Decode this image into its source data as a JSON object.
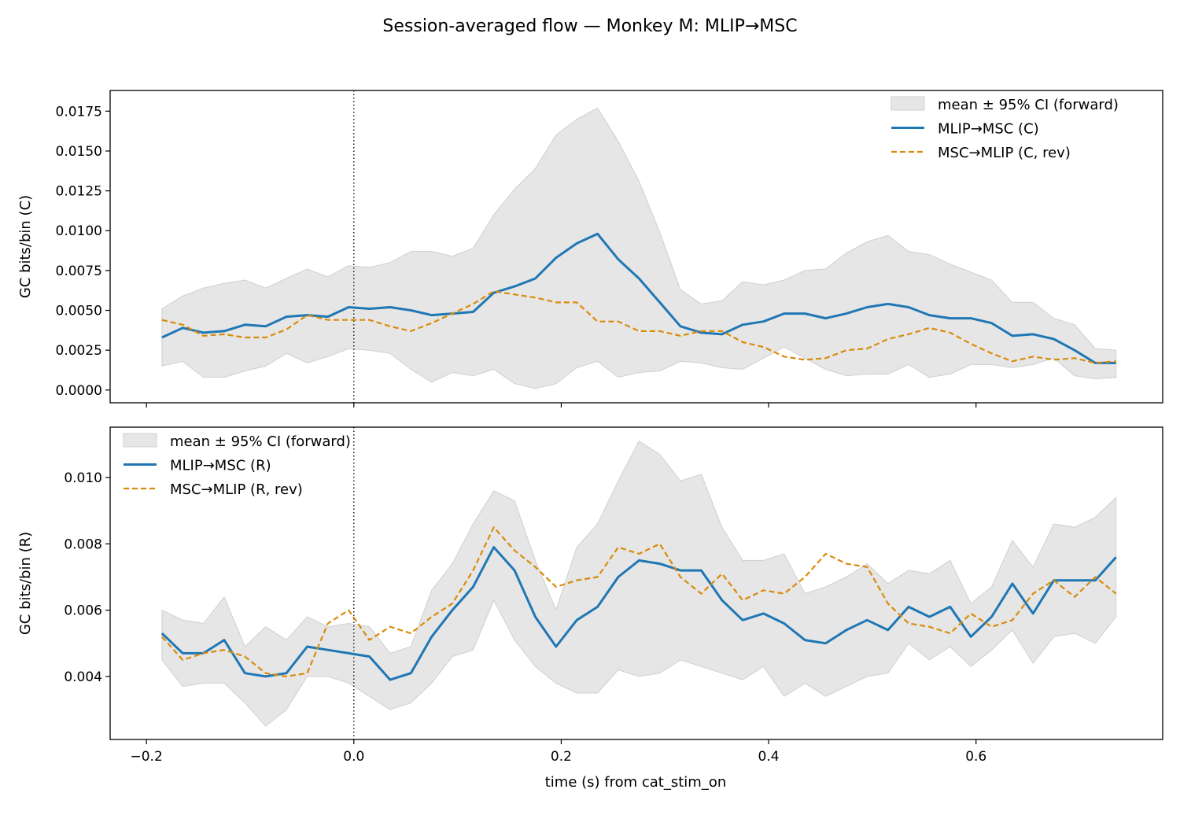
{
  "figure": {
    "title": "Session-averaged flow — Monkey M: MLIP→MSC",
    "xlabel": "time (s) from cat_stim_on",
    "colors": {
      "forward": "#1f77b4",
      "reverse": "#d98b0a",
      "ci_fill": "#e6e6e6",
      "ci_edge": "#cfcfcf"
    }
  },
  "chart_data": [
    {
      "type": "line",
      "title": "",
      "xlabel": "",
      "ylabel": "GC bits/bin (C)",
      "xlim": [
        -0.235,
        0.78
      ],
      "ylim": [
        -0.0008,
        0.0188
      ],
      "xticks": [
        -0.2,
        0.0,
        0.2,
        0.4,
        0.6
      ],
      "xtick_labels": [
        "−0.2",
        "0.0",
        "0.2",
        "0.4",
        "0.6"
      ],
      "xtick_labels_visible": false,
      "yticks": [
        0.0,
        0.0025,
        0.005,
        0.0075,
        0.01,
        0.0125,
        0.015,
        0.0175
      ],
      "ytick_labels": [
        "0.0000",
        "0.0025",
        "0.0050",
        "0.0075",
        "0.0100",
        "0.0125",
        "0.0150",
        "0.0175"
      ],
      "event_line_x": 0.0,
      "legend_position": "upper-right",
      "legend": [
        "mean ± 95% CI (forward)",
        "MLIP→MSC (C)",
        "MSC→MLIP (C, rev)"
      ],
      "x": [
        -0.185,
        -0.165,
        -0.145,
        -0.125,
        -0.105,
        -0.085,
        -0.065,
        -0.045,
        -0.025,
        -0.005,
        0.015,
        0.035,
        0.055,
        0.075,
        0.095,
        0.115,
        0.135,
        0.155,
        0.175,
        0.195,
        0.215,
        0.235,
        0.255,
        0.275,
        0.295,
        0.315,
        0.335,
        0.355,
        0.375,
        0.395,
        0.415,
        0.435,
        0.455,
        0.475,
        0.495,
        0.515,
        0.535,
        0.555,
        0.575,
        0.595,
        0.615,
        0.635,
        0.655,
        0.675,
        0.695,
        0.715,
        0.735
      ],
      "ci_upper": [
        0.0051,
        0.0059,
        0.0064,
        0.0067,
        0.0069,
        0.0064,
        0.007,
        0.0076,
        0.0071,
        0.0078,
        0.0077,
        0.008,
        0.0087,
        0.0087,
        0.0084,
        0.0089,
        0.011,
        0.0126,
        0.0139,
        0.016,
        0.017,
        0.0177,
        0.0156,
        0.0131,
        0.0099,
        0.0063,
        0.0054,
        0.0056,
        0.0068,
        0.0066,
        0.0069,
        0.0075,
        0.0076,
        0.0086,
        0.0093,
        0.0097,
        0.0087,
        0.0085,
        0.0079,
        0.0074,
        0.0069,
        0.0055,
        0.0055,
        0.0045,
        0.0041,
        0.0026,
        0.0025
      ],
      "ci_lower": [
        0.0015,
        0.0018,
        0.0008,
        0.0008,
        0.0012,
        0.0015,
        0.0023,
        0.0017,
        0.0021,
        0.0026,
        0.0025,
        0.0023,
        0.0013,
        0.0005,
        0.0011,
        0.0009,
        0.0013,
        0.0004,
        0.0001,
        0.0004,
        0.0014,
        0.0018,
        0.0008,
        0.0011,
        0.0012,
        0.0018,
        0.0017,
        0.0014,
        0.0013,
        0.002,
        0.0027,
        0.002,
        0.0013,
        0.0009,
        0.001,
        0.001,
        0.0016,
        0.0008,
        0.001,
        0.0016,
        0.0016,
        0.0014,
        0.0016,
        0.002,
        0.0009,
        0.0007,
        0.0008
      ],
      "series": [
        {
          "name": "MLIP→MSC (C)",
          "style": "solid",
          "values": [
            0.0033,
            0.0039,
            0.0036,
            0.0037,
            0.0041,
            0.004,
            0.0046,
            0.0047,
            0.0046,
            0.0052,
            0.0051,
            0.0052,
            0.005,
            0.0047,
            0.0048,
            0.0049,
            0.0061,
            0.0065,
            0.007,
            0.0083,
            0.0092,
            0.0098,
            0.0082,
            0.007,
            0.0055,
            0.004,
            0.0036,
            0.0035,
            0.0041,
            0.0043,
            0.0048,
            0.0048,
            0.0045,
            0.0048,
            0.0052,
            0.0054,
            0.0052,
            0.0047,
            0.0045,
            0.0045,
            0.0042,
            0.0034,
            0.0035,
            0.0032,
            0.0025,
            0.0017,
            0.0017
          ]
        },
        {
          "name": "MSC→MLIP (C, rev)",
          "style": "dashed",
          "values": [
            0.0044,
            0.0041,
            0.0034,
            0.0035,
            0.0033,
            0.0033,
            0.0038,
            0.0047,
            0.0044,
            0.0044,
            0.0044,
            0.004,
            0.0037,
            0.0042,
            0.0048,
            0.0054,
            0.0062,
            0.006,
            0.0058,
            0.0055,
            0.0055,
            0.0043,
            0.0043,
            0.0037,
            0.0037,
            0.0034,
            0.0037,
            0.0037,
            0.003,
            0.0027,
            0.0021,
            0.0019,
            0.002,
            0.0025,
            0.0026,
            0.0032,
            0.0035,
            0.0039,
            0.0036,
            0.0029,
            0.0023,
            0.0018,
            0.0021,
            0.0019,
            0.002,
            0.0017,
            0.0018
          ]
        }
      ]
    },
    {
      "type": "line",
      "title": "",
      "xlabel": "time (s) from cat_stim_on",
      "ylabel": "GC bits/bin (R)",
      "xlim": [
        -0.235,
        0.78
      ],
      "ylim": [
        0.0021,
        0.01152
      ],
      "xticks": [
        -0.2,
        0.0,
        0.2,
        0.4,
        0.6
      ],
      "xtick_labels": [
        "−0.2",
        "0.0",
        "0.2",
        "0.4",
        "0.6"
      ],
      "xtick_labels_visible": true,
      "yticks": [
        0.004,
        0.006,
        0.008,
        0.01
      ],
      "ytick_labels": [
        "0.004",
        "0.006",
        "0.008",
        "0.010"
      ],
      "event_line_x": 0.0,
      "legend_position": "upper-left",
      "legend": [
        "mean ± 95% CI (forward)",
        "MLIP→MSC (R)",
        "MSC→MLIP (R, rev)"
      ],
      "x": [
        -0.185,
        -0.165,
        -0.145,
        -0.125,
        -0.105,
        -0.085,
        -0.065,
        -0.045,
        -0.025,
        -0.005,
        0.015,
        0.035,
        0.055,
        0.075,
        0.095,
        0.115,
        0.135,
        0.155,
        0.175,
        0.195,
        0.215,
        0.235,
        0.255,
        0.275,
        0.295,
        0.315,
        0.335,
        0.355,
        0.375,
        0.395,
        0.415,
        0.435,
        0.455,
        0.475,
        0.495,
        0.515,
        0.535,
        0.555,
        0.575,
        0.595,
        0.615,
        0.635,
        0.655,
        0.675,
        0.695,
        0.715,
        0.735
      ],
      "ci_upper": [
        0.006,
        0.0057,
        0.0056,
        0.0064,
        0.0049,
        0.0055,
        0.0051,
        0.0058,
        0.0055,
        0.0056,
        0.0055,
        0.0047,
        0.0049,
        0.0066,
        0.0074,
        0.0086,
        0.0096,
        0.0093,
        0.0075,
        0.006,
        0.0079,
        0.0086,
        0.0099,
        0.0111,
        0.0107,
        0.0099,
        0.0101,
        0.0085,
        0.0075,
        0.0075,
        0.0077,
        0.0065,
        0.0067,
        0.007,
        0.0074,
        0.0068,
        0.0072,
        0.0071,
        0.0075,
        0.0062,
        0.0067,
        0.0081,
        0.0073,
        0.0086,
        0.0085,
        0.0088,
        0.0094
      ],
      "ci_lower": [
        0.0045,
        0.0037,
        0.0038,
        0.0038,
        0.0032,
        0.0025,
        0.003,
        0.004,
        0.004,
        0.0038,
        0.0034,
        0.003,
        0.0032,
        0.0038,
        0.0046,
        0.0048,
        0.0063,
        0.0051,
        0.0043,
        0.0038,
        0.0035,
        0.0035,
        0.0042,
        0.004,
        0.0041,
        0.0045,
        0.0043,
        0.0041,
        0.0039,
        0.0043,
        0.0034,
        0.0038,
        0.0034,
        0.0037,
        0.004,
        0.0041,
        0.005,
        0.0045,
        0.0049,
        0.0043,
        0.0048,
        0.0054,
        0.0044,
        0.0052,
        0.0053,
        0.005,
        0.0058
      ],
      "series": [
        {
          "name": "MLIP→MSC (R)",
          "style": "solid",
          "values": [
            0.0053,
            0.0047,
            0.0047,
            0.0051,
            0.0041,
            0.004,
            0.0041,
            0.0049,
            0.0048,
            0.0047,
            0.0046,
            0.0039,
            0.0041,
            0.0052,
            0.006,
            0.0067,
            0.0079,
            0.0072,
            0.0058,
            0.0049,
            0.0057,
            0.0061,
            0.007,
            0.0075,
            0.0074,
            0.0072,
            0.0072,
            0.0063,
            0.0057,
            0.0059,
            0.0056,
            0.0051,
            0.005,
            0.0054,
            0.0057,
            0.0054,
            0.0061,
            0.0058,
            0.0061,
            0.0052,
            0.0058,
            0.0068,
            0.0059,
            0.0069,
            0.0069,
            0.0069,
            0.0076
          ]
        },
        {
          "name": "MSC→MLIP (R, rev)",
          "style": "dashed",
          "values": [
            0.0052,
            0.0045,
            0.0047,
            0.0048,
            0.0046,
            0.0041,
            0.004,
            0.0041,
            0.0056,
            0.006,
            0.0051,
            0.0055,
            0.0053,
            0.0058,
            0.0062,
            0.0072,
            0.0085,
            0.0078,
            0.0073,
            0.0067,
            0.0069,
            0.007,
            0.0079,
            0.0077,
            0.008,
            0.007,
            0.0065,
            0.0071,
            0.0063,
            0.0066,
            0.0065,
            0.007,
            0.0077,
            0.0074,
            0.0073,
            0.0062,
            0.0056,
            0.0055,
            0.0053,
            0.0059,
            0.0055,
            0.0057,
            0.0065,
            0.0069,
            0.0064,
            0.007,
            0.0065
          ]
        }
      ]
    }
  ]
}
